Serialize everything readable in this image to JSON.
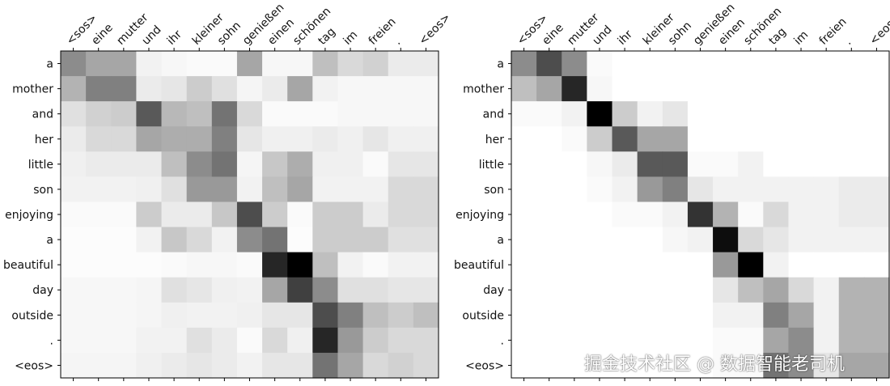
{
  "chart_data": [
    {
      "type": "heatmap",
      "title": "",
      "xlabel": "",
      "ylabel": "",
      "x_labels": [
        "<sos>",
        "eine",
        "mutter",
        "und",
        "ihr",
        "kleiner",
        "sohn",
        "genießen",
        "einen",
        "schönen",
        "tag",
        "im",
        "freien",
        ".",
        "<eos>"
      ],
      "y_labels": [
        "a",
        "mother",
        "and",
        "her",
        "little",
        "son",
        "enjoying",
        "a",
        "beautiful",
        "day",
        "outside",
        ".",
        "<eos>"
      ],
      "value_range": [
        0,
        1
      ],
      "colormap": "greys (0 = white, 1 = black)",
      "values": [
        [
          0.45,
          0.35,
          0.35,
          0.05,
          0.03,
          0.02,
          0.02,
          0.35,
          0.03,
          0.03,
          0.25,
          0.15,
          0.18,
          0.08,
          0.08
        ],
        [
          0.3,
          0.5,
          0.5,
          0.08,
          0.1,
          0.2,
          0.12,
          0.04,
          0.08,
          0.35,
          0.05,
          0.03,
          0.03,
          0.03,
          0.03
        ],
        [
          0.12,
          0.18,
          0.2,
          0.65,
          0.28,
          0.25,
          0.55,
          0.15,
          0.02,
          0.02,
          0.02,
          0.03,
          0.03,
          0.03,
          0.03
        ],
        [
          0.08,
          0.15,
          0.15,
          0.35,
          0.32,
          0.32,
          0.5,
          0.1,
          0.06,
          0.06,
          0.08,
          0.06,
          0.1,
          0.06,
          0.06
        ],
        [
          0.06,
          0.08,
          0.08,
          0.08,
          0.25,
          0.45,
          0.55,
          0.04,
          0.22,
          0.32,
          0.06,
          0.06,
          0.02,
          0.1,
          0.1
        ],
        [
          0.05,
          0.05,
          0.05,
          0.06,
          0.12,
          0.4,
          0.4,
          0.05,
          0.25,
          0.35,
          0.05,
          0.05,
          0.05,
          0.15,
          0.15
        ],
        [
          0.02,
          0.02,
          0.02,
          0.2,
          0.08,
          0.08,
          0.22,
          0.7,
          0.2,
          0.02,
          0.2,
          0.2,
          0.08,
          0.15,
          0.15
        ],
        [
          0.01,
          0.01,
          0.01,
          0.05,
          0.22,
          0.15,
          0.05,
          0.45,
          0.55,
          0.01,
          0.2,
          0.2,
          0.2,
          0.12,
          0.12
        ],
        [
          0.01,
          0.01,
          0.01,
          0.01,
          0.02,
          0.03,
          0.03,
          0.02,
          0.85,
          1.0,
          0.25,
          0.05,
          0.02,
          0.05,
          0.05
        ],
        [
          0.03,
          0.03,
          0.03,
          0.04,
          0.12,
          0.1,
          0.06,
          0.05,
          0.35,
          0.75,
          0.45,
          0.12,
          0.12,
          0.1,
          0.1
        ],
        [
          0.03,
          0.03,
          0.03,
          0.04,
          0.06,
          0.05,
          0.05,
          0.06,
          0.1,
          0.1,
          0.7,
          0.5,
          0.25,
          0.2,
          0.25
        ],
        [
          0.03,
          0.03,
          0.03,
          0.05,
          0.05,
          0.12,
          0.08,
          0.02,
          0.15,
          0.06,
          0.85,
          0.4,
          0.2,
          0.15,
          0.15
        ],
        [
          0.04,
          0.04,
          0.04,
          0.06,
          0.08,
          0.1,
          0.08,
          0.05,
          0.1,
          0.1,
          0.55,
          0.35,
          0.15,
          0.18,
          0.15
        ]
      ]
    },
    {
      "type": "heatmap",
      "title": "",
      "xlabel": "",
      "ylabel": "",
      "x_labels": [
        "<sos>",
        "eine",
        "mutter",
        "und",
        "ihr",
        "kleiner",
        "sohn",
        "genießen",
        "einen",
        "schönen",
        "tag",
        "im",
        "freien",
        ".",
        "<eos>"
      ],
      "y_labels": [
        "a",
        "mother",
        "and",
        "her",
        "little",
        "son",
        "enjoying",
        "a",
        "beautiful",
        "day",
        "outside",
        ".",
        "<eos>"
      ],
      "value_range": [
        0,
        1
      ],
      "colormap": "greys (0 = white, 1 = black)",
      "values": [
        [
          0.45,
          0.7,
          0.45,
          0.02,
          0.0,
          0.0,
          0.0,
          0.0,
          0.0,
          0.0,
          0.0,
          0.0,
          0.0,
          0.0,
          0.0
        ],
        [
          0.25,
          0.35,
          0.85,
          0.03,
          0.0,
          0.0,
          0.0,
          0.0,
          0.0,
          0.0,
          0.0,
          0.0,
          0.0,
          0.0,
          0.0
        ],
        [
          0.02,
          0.02,
          0.05,
          1.0,
          0.2,
          0.05,
          0.1,
          0.0,
          0.0,
          0.0,
          0.0,
          0.0,
          0.0,
          0.0,
          0.0
        ],
        [
          0.0,
          0.0,
          0.02,
          0.2,
          0.65,
          0.35,
          0.35,
          0.0,
          0.0,
          0.0,
          0.0,
          0.0,
          0.0,
          0.0,
          0.0
        ],
        [
          0.0,
          0.0,
          0.0,
          0.03,
          0.08,
          0.65,
          0.65,
          0.02,
          0.02,
          0.05,
          0.0,
          0.0,
          0.0,
          0.0,
          0.0
        ],
        [
          0.0,
          0.0,
          0.0,
          0.02,
          0.05,
          0.4,
          0.5,
          0.1,
          0.05,
          0.05,
          0.05,
          0.05,
          0.05,
          0.08,
          0.08
        ],
        [
          0.0,
          0.0,
          0.0,
          0.0,
          0.02,
          0.02,
          0.05,
          0.8,
          0.3,
          0.02,
          0.15,
          0.05,
          0.05,
          0.08,
          0.08
        ],
        [
          0.0,
          0.0,
          0.0,
          0.0,
          0.0,
          0.0,
          0.03,
          0.05,
          0.95,
          0.15,
          0.1,
          0.05,
          0.05,
          0.05,
          0.05
        ],
        [
          0.0,
          0.0,
          0.0,
          0.0,
          0.0,
          0.0,
          0.0,
          0.0,
          0.4,
          1.0,
          0.05,
          0.0,
          0.0,
          0.0,
          0.0
        ],
        [
          0.0,
          0.0,
          0.0,
          0.0,
          0.0,
          0.0,
          0.0,
          0.0,
          0.1,
          0.25,
          0.35,
          0.15,
          0.05,
          0.3,
          0.3
        ],
        [
          0.0,
          0.0,
          0.0,
          0.0,
          0.0,
          0.0,
          0.0,
          0.0,
          0.05,
          0.05,
          0.5,
          0.35,
          0.05,
          0.3,
          0.3
        ],
        [
          0.0,
          0.0,
          0.0,
          0.0,
          0.0,
          0.0,
          0.0,
          0.0,
          0.02,
          0.02,
          0.35,
          0.45,
          0.05,
          0.3,
          0.3
        ],
        [
          0.0,
          0.0,
          0.0,
          0.0,
          0.0,
          0.0,
          0.0,
          0.0,
          0.02,
          0.02,
          0.55,
          0.45,
          0.1,
          0.35,
          0.35
        ]
      ]
    }
  ],
  "watermark": "掘金技术社区 @ 数据智能老司机"
}
